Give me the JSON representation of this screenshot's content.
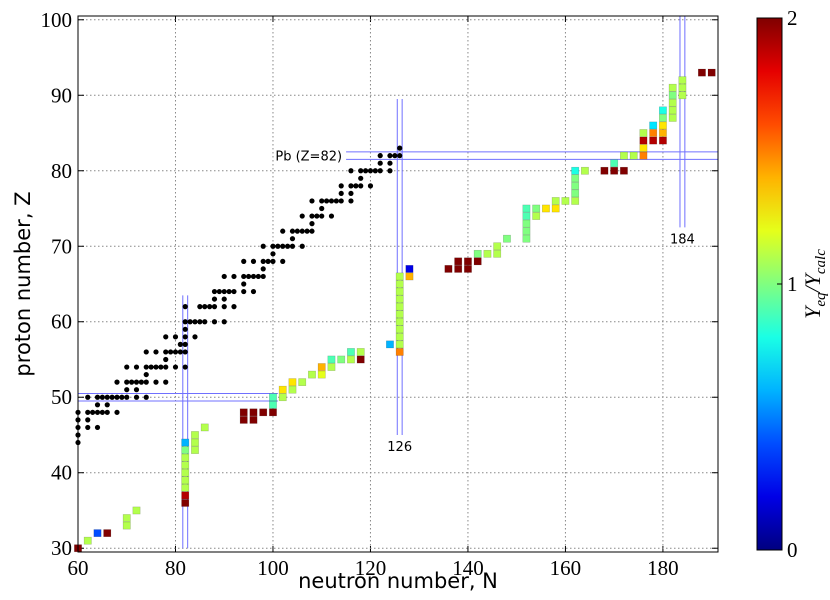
{
  "chart_data": {
    "type": "nuclide-map",
    "x_label": "neutron number, N",
    "y_label": "proton number, Z",
    "xlim": [
      60,
      191.3
    ],
    "ylim": [
      29.5,
      100.5
    ],
    "xticks": [
      60,
      80,
      100,
      120,
      140,
      160,
      180
    ],
    "yticks": [
      30,
      40,
      50,
      60,
      70,
      80,
      90,
      100
    ],
    "grid": true,
    "colormap": "jet",
    "colorbar": {
      "label": [
        "Y",
        "eq",
        "/Y",
        "calc"
      ],
      "lim": [
        0,
        2
      ],
      "ticks": [
        0,
        1,
        2
      ]
    },
    "stable": {
      "color": "#000000",
      "points": [
        [
          60,
          44
        ],
        [
          60,
          45
        ],
        [
          60,
          46
        ],
        [
          62,
          46
        ],
        [
          64,
          46
        ],
        [
          60,
          47
        ],
        [
          62,
          47
        ],
        [
          60,
          48
        ],
        [
          62,
          48
        ],
        [
          63,
          48
        ],
        [
          64,
          48
        ],
        [
          65,
          48
        ],
        [
          66,
          48
        ],
        [
          68,
          48
        ],
        [
          64,
          49
        ],
        [
          66,
          49
        ],
        [
          62,
          50
        ],
        [
          64,
          50
        ],
        [
          65,
          50
        ],
        [
          66,
          50
        ],
        [
          67,
          50
        ],
        [
          68,
          50
        ],
        [
          69,
          50
        ],
        [
          70,
          50
        ],
        [
          72,
          50
        ],
        [
          74,
          50
        ],
        [
          70,
          51
        ],
        [
          72,
          51
        ],
        [
          68,
          52
        ],
        [
          70,
          52
        ],
        [
          71,
          52
        ],
        [
          72,
          52
        ],
        [
          73,
          52
        ],
        [
          74,
          52
        ],
        [
          76,
          52
        ],
        [
          78,
          52
        ],
        [
          74,
          53
        ],
        [
          70,
          54
        ],
        [
          72,
          54
        ],
        [
          74,
          54
        ],
        [
          75,
          54
        ],
        [
          76,
          54
        ],
        [
          77,
          54
        ],
        [
          78,
          54
        ],
        [
          80,
          54
        ],
        [
          82,
          54
        ],
        [
          78,
          55
        ],
        [
          74,
          56
        ],
        [
          76,
          56
        ],
        [
          78,
          56
        ],
        [
          79,
          56
        ],
        [
          80,
          56
        ],
        [
          81,
          56
        ],
        [
          82,
          56
        ],
        [
          81,
          57
        ],
        [
          82,
          57
        ],
        [
          78,
          58
        ],
        [
          80,
          58
        ],
        [
          82,
          58
        ],
        [
          84,
          58
        ],
        [
          82,
          59
        ],
        [
          82,
          60
        ],
        [
          83,
          60
        ],
        [
          84,
          60
        ],
        [
          85,
          60
        ],
        [
          86,
          60
        ],
        [
          88,
          60
        ],
        [
          90,
          60
        ],
        [
          82,
          62
        ],
        [
          85,
          62
        ],
        [
          86,
          62
        ],
        [
          87,
          62
        ],
        [
          88,
          62
        ],
        [
          90,
          62
        ],
        [
          92,
          62
        ],
        [
          88,
          63
        ],
        [
          90,
          63
        ],
        [
          88,
          64
        ],
        [
          89,
          64
        ],
        [
          90,
          64
        ],
        [
          91,
          64
        ],
        [
          92,
          64
        ],
        [
          94,
          64
        ],
        [
          96,
          64
        ],
        [
          94,
          65
        ],
        [
          90,
          66
        ],
        [
          92,
          66
        ],
        [
          94,
          66
        ],
        [
          95,
          66
        ],
        [
          96,
          66
        ],
        [
          97,
          66
        ],
        [
          98,
          66
        ],
        [
          98,
          67
        ],
        [
          94,
          68
        ],
        [
          96,
          68
        ],
        [
          98,
          68
        ],
        [
          99,
          68
        ],
        [
          100,
          68
        ],
        [
          102,
          68
        ],
        [
          100,
          69
        ],
        [
          98,
          70
        ],
        [
          100,
          70
        ],
        [
          101,
          70
        ],
        [
          102,
          70
        ],
        [
          103,
          70
        ],
        [
          104,
          70
        ],
        [
          106,
          70
        ],
        [
          104,
          71
        ],
        [
          102,
          72
        ],
        [
          104,
          72
        ],
        [
          105,
          72
        ],
        [
          106,
          72
        ],
        [
          107,
          72
        ],
        [
          108,
          72
        ],
        [
          108,
          73
        ],
        [
          106,
          74
        ],
        [
          108,
          74
        ],
        [
          109,
          74
        ],
        [
          110,
          74
        ],
        [
          112,
          74
        ],
        [
          110,
          75
        ],
        [
          108,
          76
        ],
        [
          110,
          76
        ],
        [
          111,
          76
        ],
        [
          112,
          76
        ],
        [
          113,
          76
        ],
        [
          114,
          76
        ],
        [
          116,
          76
        ],
        [
          114,
          77
        ],
        [
          116,
          77
        ],
        [
          114,
          78
        ],
        [
          116,
          78
        ],
        [
          117,
          78
        ],
        [
          118,
          78
        ],
        [
          120,
          78
        ],
        [
          118,
          79
        ],
        [
          116,
          80
        ],
        [
          118,
          80
        ],
        [
          119,
          80
        ],
        [
          120,
          80
        ],
        [
          121,
          80
        ],
        [
          122,
          80
        ],
        [
          124,
          80
        ],
        [
          122,
          81
        ],
        [
          124,
          81
        ],
        [
          122,
          82
        ],
        [
          124,
          82
        ],
        [
          125,
          82
        ],
        [
          126,
          82
        ],
        [
          126,
          83
        ]
      ]
    },
    "computed": {
      "points": [
        [
          60,
          30,
          2.0
        ],
        [
          62,
          31,
          1.1
        ],
        [
          64,
          32,
          0.4
        ],
        [
          66,
          32,
          2.0
        ],
        [
          70,
          33,
          1.1
        ],
        [
          70,
          34,
          1.1
        ],
        [
          72,
          35,
          1.1
        ],
        [
          82,
          36,
          2.0
        ],
        [
          82,
          37,
          1.9
        ],
        [
          82,
          38,
          1.1
        ],
        [
          82,
          39,
          1.1
        ],
        [
          82,
          40,
          1.1
        ],
        [
          82,
          41,
          1.1
        ],
        [
          82,
          42,
          1.1
        ],
        [
          82,
          43,
          1.0
        ],
        [
          82,
          44,
          0.6
        ],
        [
          84,
          43,
          1.1
        ],
        [
          84,
          44,
          1.1
        ],
        [
          84,
          45,
          1.1
        ],
        [
          86,
          46,
          1.1
        ],
        [
          94,
          47,
          2.0
        ],
        [
          94,
          48,
          2.0
        ],
        [
          96,
          47,
          2.0
        ],
        [
          96,
          48,
          2.0
        ],
        [
          98,
          48,
          2.0
        ],
        [
          100,
          48,
          2.0
        ],
        [
          100,
          49,
          0.9
        ],
        [
          100,
          50,
          0.9
        ],
        [
          102,
          50,
          1.1
        ],
        [
          102,
          51,
          1.3
        ],
        [
          104,
          51,
          1.1
        ],
        [
          104,
          52,
          1.3
        ],
        [
          106,
          52,
          1.1
        ],
        [
          108,
          53,
          1.1
        ],
        [
          110,
          53,
          1.2
        ],
        [
          110,
          54,
          1.4
        ],
        [
          112,
          54,
          1.1
        ],
        [
          112,
          55,
          0.9
        ],
        [
          114,
          55,
          1.0
        ],
        [
          116,
          55,
          1.1
        ],
        [
          116,
          56,
          0.9
        ],
        [
          118,
          55,
          2.0
        ],
        [
          118,
          56,
          1.1
        ],
        [
          124,
          57,
          0.6
        ],
        [
          126,
          56,
          1.5
        ],
        [
          126,
          57,
          1.1
        ],
        [
          126,
          58,
          1.1
        ],
        [
          126,
          59,
          1.1
        ],
        [
          126,
          60,
          1.1
        ],
        [
          126,
          61,
          1.1
        ],
        [
          126,
          62,
          1.1
        ],
        [
          126,
          63,
          1.1
        ],
        [
          126,
          64,
          1.1
        ],
        [
          126,
          65,
          1.1
        ],
        [
          126,
          66,
          1.1
        ],
        [
          128,
          66,
          1.4
        ],
        [
          128,
          67,
          0.2
        ],
        [
          136,
          67,
          2.0
        ],
        [
          138,
          67,
          2.0
        ],
        [
          138,
          68,
          2.0
        ],
        [
          140,
          67,
          2.0
        ],
        [
          140,
          68,
          2.0
        ],
        [
          142,
          68,
          2.0
        ],
        [
          142,
          69,
          1.0
        ],
        [
          144,
          69,
          1.1
        ],
        [
          146,
          69,
          1.1
        ],
        [
          146,
          70,
          1.1
        ],
        [
          148,
          71,
          1.0
        ],
        [
          152,
          71,
          1.0
        ],
        [
          152,
          72,
          1.0
        ],
        [
          152,
          73,
          1.0
        ],
        [
          152,
          74,
          0.9
        ],
        [
          152,
          75,
          0.9
        ],
        [
          154,
          74,
          1.1
        ],
        [
          154,
          75,
          1.0
        ],
        [
          156,
          75,
          1.3
        ],
        [
          158,
          75,
          1.3
        ],
        [
          158,
          76,
          1.1
        ],
        [
          160,
          76,
          1.1
        ],
        [
          162,
          76,
          1.1
        ],
        [
          162,
          77,
          1.0
        ],
        [
          162,
          78,
          1.0
        ],
        [
          162,
          79,
          1.0
        ],
        [
          162,
          80,
          0.8
        ],
        [
          164,
          80,
          1.1
        ],
        [
          168,
          80,
          2.0
        ],
        [
          170,
          80,
          2.0
        ],
        [
          170,
          81,
          0.9
        ],
        [
          172,
          80,
          2.0
        ],
        [
          172,
          82,
          1.1
        ],
        [
          174,
          82,
          1.1
        ],
        [
          176,
          82,
          1.5
        ],
        [
          176,
          83,
          1.3
        ],
        [
          176,
          84,
          1.9
        ],
        [
          176,
          85,
          1.1
        ],
        [
          178,
          84,
          1.9
        ],
        [
          178,
          85,
          1.5
        ],
        [
          178,
          86,
          0.7
        ],
        [
          180,
          84,
          1.9
        ],
        [
          180,
          85,
          1.4
        ],
        [
          180,
          86,
          1.3
        ],
        [
          180,
          87,
          1.0
        ],
        [
          180,
          88,
          0.8
        ],
        [
          182,
          87,
          1.1
        ],
        [
          182,
          88,
          1.1
        ],
        [
          182,
          89,
          1.1
        ],
        [
          182,
          90,
          1.0
        ],
        [
          182,
          91,
          1.1
        ],
        [
          184,
          90,
          1.1
        ],
        [
          184,
          91,
          1.1
        ],
        [
          184,
          92,
          1.1
        ],
        [
          188,
          93,
          2.0
        ],
        [
          190,
          93,
          2.0
        ]
      ]
    },
    "vlines": [
      {
        "x": 82,
        "y": [
          30,
          63.5
        ]
      },
      {
        "x": 126,
        "y": [
          45,
          89.5
        ],
        "label": "126"
      },
      {
        "x": 184,
        "y": [
          72.5,
          100.5
        ],
        "label": "184"
      }
    ],
    "hlines": [
      {
        "y": 50,
        "x": [
          60,
          101
        ]
      },
      {
        "y": 82,
        "x": [
          115,
          191.3
        ],
        "label": "Pb (Z=82)"
      }
    ],
    "line_color": "#7070ff"
  }
}
